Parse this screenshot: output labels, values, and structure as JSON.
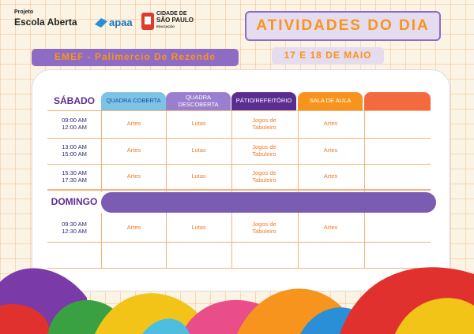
{
  "header": {
    "project_label": "Projeto",
    "project_name": "Escola Aberta",
    "partner": "apaa",
    "city_logo": [
      "CIDADE DE",
      "SÃO PAULO",
      "EDUCAÇÃO"
    ]
  },
  "title": "ATIVIDADES DO DIA",
  "school": "EMEF - Palimercio De Rezende",
  "dates": "17 E 18 DE MAIO",
  "table": {
    "columns": [
      "QUADRA COBERTA",
      "QUADRA DESCOBERTA",
      "PÁTIO/REFEITÓRIO",
      "SALA DE AULA"
    ],
    "days": [
      {
        "name": "SÁBADO",
        "rows": [
          {
            "start": "09:00 AM",
            "end": "12:00 AM",
            "activities": [
              "Artes",
              "Lutas",
              "Jogos de Tabuleiro",
              "Artes"
            ]
          },
          {
            "start": "13:00 AM",
            "end": "15:00 AM",
            "activities": [
              "Artes",
              "Lutas",
              "Jogos de Tabuleiro",
              "Artes"
            ]
          },
          {
            "start": "15:30 AM",
            "end": "17:30 AM",
            "activities": [
              "Artes",
              "Lutas",
              "Jogos de Tabuleiro",
              "Artes"
            ]
          }
        ]
      },
      {
        "name": "DOMINGO",
        "rows": [
          {
            "start": "09:30 AM",
            "end": "12:30 AM",
            "activities": [
              "Artes",
              "Lutas",
              "Jogos de Tabuleiro",
              "Artes"
            ]
          }
        ]
      }
    ]
  }
}
